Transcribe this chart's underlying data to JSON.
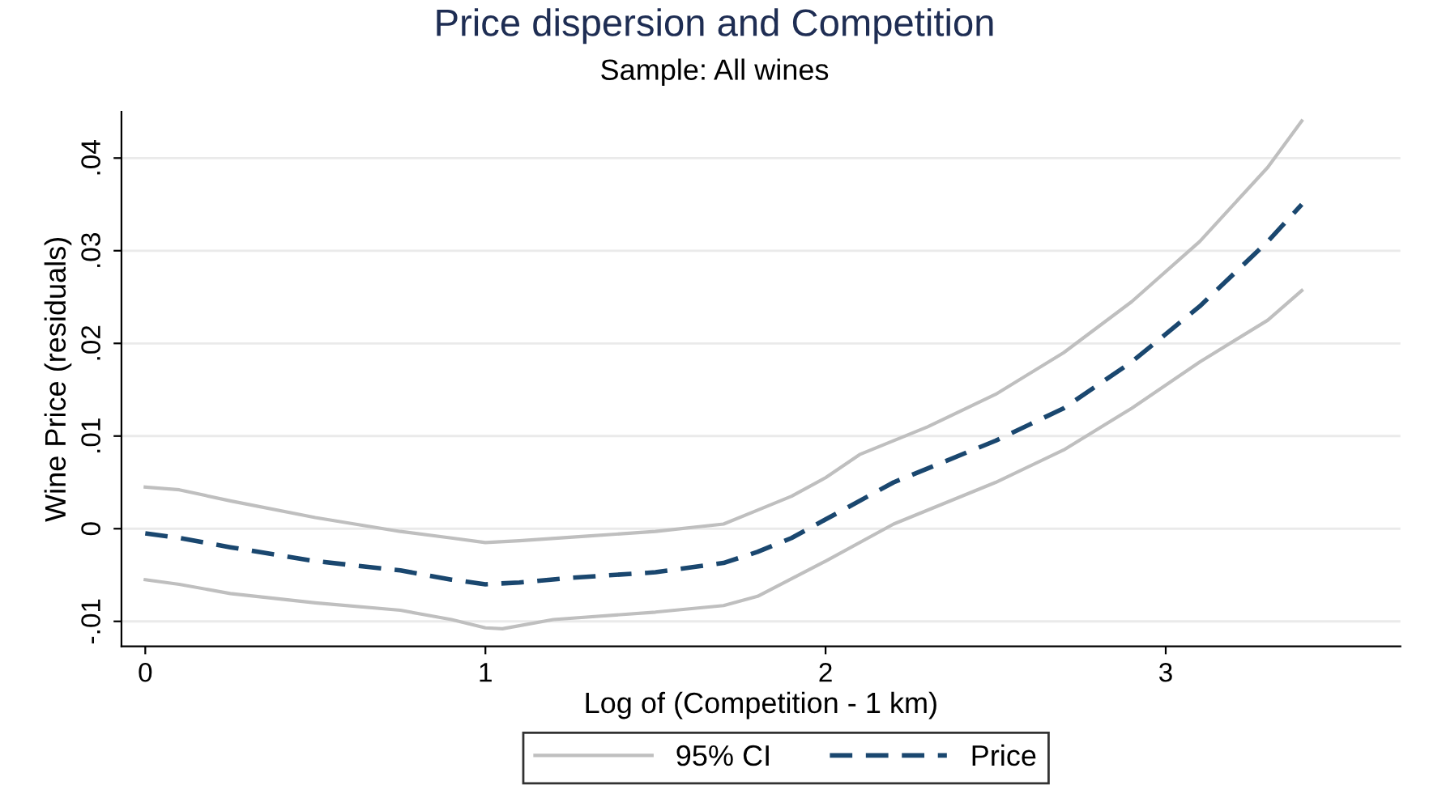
{
  "chart_data": {
    "type": "line",
    "title": "Price dispersion and Competition",
    "subtitle": "Sample: All wines",
    "xlabel": "Log of (Competition - 1 km)",
    "ylabel": "Wine Price (residuals)",
    "xlim": [
      -0.07,
      3.69
    ],
    "xticks": [
      0,
      1,
      2,
      3
    ],
    "ylim": [
      -0.0127,
      0.045
    ],
    "yticks": [
      {
        "value": -0.01,
        "label": "-.01"
      },
      {
        "value": 0,
        "label": "0"
      },
      {
        "value": 0.01,
        "label": ".01"
      },
      {
        "value": 0.02,
        "label": ".02"
      },
      {
        "value": 0.03,
        "label": ".03"
      },
      {
        "value": 0.04,
        "label": ".04"
      }
    ],
    "grid": "y",
    "legend": "bottom",
    "marker": "none",
    "series": [
      {
        "name": "95% CI",
        "color": "#bfbfbf",
        "line_style": "solid",
        "x": [
          0,
          0.1,
          0.25,
          0.5,
          0.75,
          0.9,
          1.0,
          1.1,
          1.3,
          1.5,
          1.7,
          1.8,
          1.9,
          2.0,
          2.1,
          2.3,
          2.5,
          2.7,
          2.9,
          3.1,
          3.3,
          3.4
        ],
        "values": [
          0.0045,
          0.0042,
          0.003,
          0.0012,
          -0.0003,
          -0.001,
          -0.0015,
          -0.0013,
          -0.0008,
          -0.0003,
          0.0005,
          0.002,
          0.0035,
          0.0055,
          0.008,
          0.011,
          0.0145,
          0.019,
          0.0245,
          0.031,
          0.039,
          0.044
        ]
      },
      {
        "color": "#bfbfbf",
        "line_style": "solid",
        "x": [
          0,
          0.1,
          0.25,
          0.5,
          0.75,
          0.9,
          1.0,
          1.05,
          1.2,
          1.5,
          1.7,
          1.8,
          2.0,
          2.2,
          2.5,
          2.7,
          2.9,
          3.1,
          3.3,
          3.4
        ],
        "values": [
          -0.0055,
          -0.006,
          -0.007,
          -0.008,
          -0.0088,
          -0.0098,
          -0.0107,
          -0.0108,
          -0.0098,
          -0.009,
          -0.0083,
          -0.0073,
          -0.0035,
          0.0005,
          0.005,
          0.0085,
          0.013,
          0.018,
          0.0225,
          0.0257
        ]
      },
      {
        "name": "Price",
        "color": "#1a476f",
        "line_style": "dashed",
        "x": [
          0,
          0.1,
          0.25,
          0.5,
          0.75,
          0.9,
          1.0,
          1.1,
          1.25,
          1.5,
          1.7,
          1.8,
          1.9,
          2.0,
          2.2,
          2.5,
          2.7,
          2.9,
          3.1,
          3.3,
          3.4
        ],
        "values": [
          -0.0005,
          -0.001,
          -0.002,
          -0.0035,
          -0.0045,
          -0.0055,
          -0.006,
          -0.0058,
          -0.0053,
          -0.0047,
          -0.0037,
          -0.0025,
          -0.001,
          0.001,
          0.005,
          0.0095,
          0.013,
          0.018,
          0.024,
          0.031,
          0.035
        ]
      }
    ]
  }
}
